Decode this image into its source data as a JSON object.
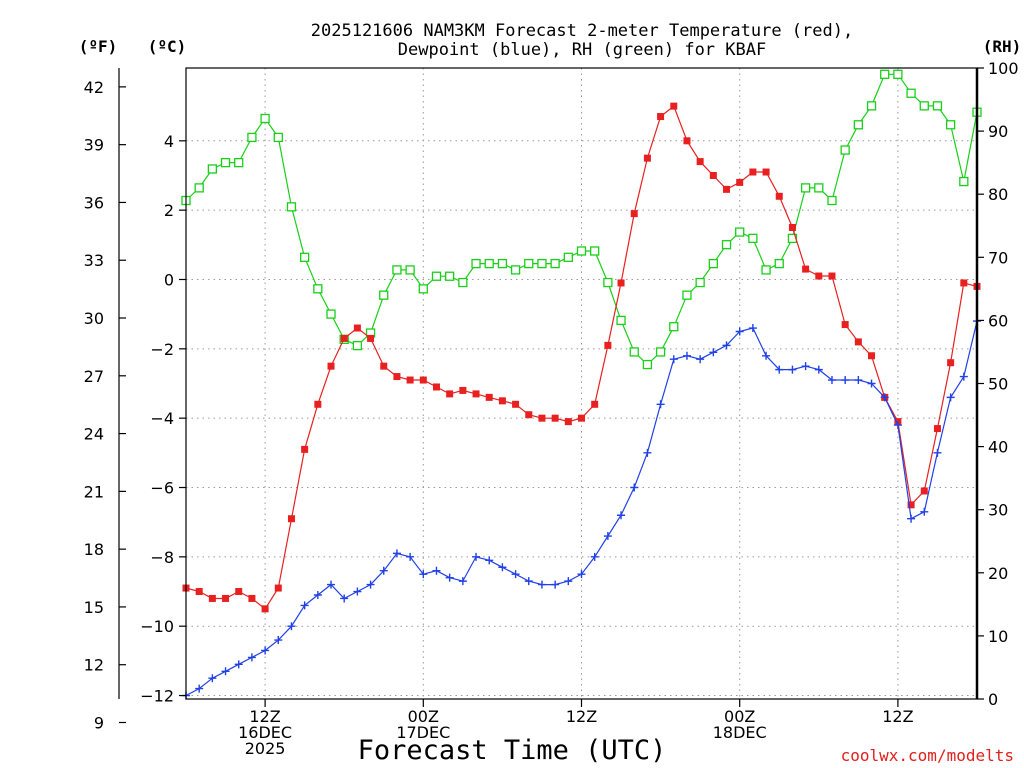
{
  "title": {
    "line1": "2025121606 NAM3KM Forecast 2-meter Temperature (red),",
    "line2": "Dewpoint (blue), RH (green) for KBAF"
  },
  "units": {
    "fahrenheit": "(ºF)",
    "celsius": "(ºC)",
    "rh": "(RH)"
  },
  "x_axis_label": "Forecast Time (UTC)",
  "credit": "coolwx.com/modelts",
  "chart_data": {
    "type": "line",
    "x_unit": "forecast hour",
    "x_range": [
      0,
      60
    ],
    "x_ticks": [
      {
        "hour": 6,
        "lines": [
          "12Z",
          "16DEC",
          "2025"
        ]
      },
      {
        "hour": 18,
        "lines": [
          "00Z",
          "17DEC"
        ]
      },
      {
        "hour": 30,
        "lines": [
          "12Z"
        ]
      },
      {
        "hour": 42,
        "lines": [
          "00Z",
          "18DEC"
        ]
      },
      {
        "hour": 54,
        "lines": [
          "12Z"
        ]
      }
    ],
    "left_axis_celsius": {
      "range": [
        -12.1,
        6.1
      ],
      "ticks": [
        "−12",
        "−10",
        "−8",
        "−6",
        "−4",
        "−2",
        "0",
        "2",
        "4"
      ],
      "tick_values": [
        -12,
        -10,
        -8,
        -6,
        -4,
        -2,
        0,
        2,
        4
      ]
    },
    "left_axis_fahrenheit": {
      "ticks": [
        "9",
        "12",
        "15",
        "18",
        "21",
        "24",
        "27",
        "30",
        "33",
        "36",
        "39",
        "42"
      ],
      "tick_values": [
        9,
        12,
        15,
        18,
        21,
        24,
        27,
        30,
        33,
        36,
        39,
        42
      ]
    },
    "right_axis_rh": {
      "range": [
        0,
        100
      ],
      "ticks": [
        "0",
        "10",
        "20",
        "30",
        "40",
        "50",
        "60",
        "70",
        "80",
        "90",
        "100"
      ],
      "tick_values": [
        0,
        10,
        20,
        30,
        40,
        50,
        60,
        70,
        80,
        90,
        100
      ]
    },
    "series": [
      {
        "name": "2-meter Temperature",
        "unit": "°C",
        "axis": "left",
        "color": "#e82020",
        "marker": "filled-square",
        "values": [
          -8.9,
          -9.0,
          -9.2,
          -9.2,
          -9.0,
          -9.2,
          -9.5,
          -8.9,
          -6.9,
          -4.9,
          -3.6,
          -2.5,
          -1.7,
          -1.4,
          -1.7,
          -2.5,
          -2.8,
          -2.9,
          -2.9,
          -3.1,
          -3.3,
          -3.2,
          -3.3,
          -3.4,
          -3.5,
          -3.6,
          -3.9,
          -4.0,
          -4.0,
          -4.1,
          -4.0,
          -3.6,
          -1.9,
          -0.1,
          1.9,
          3.5,
          4.7,
          5.0,
          4.0,
          3.4,
          3.0,
          2.6,
          2.8,
          3.1,
          3.1,
          2.4,
          1.5,
          0.3,
          0.1,
          0.1,
          -1.3,
          -1.8,
          -2.2,
          -3.4,
          -4.1,
          -6.5,
          -6.1,
          -4.3,
          -2.4,
          -0.1,
          -0.2
        ]
      },
      {
        "name": "Dewpoint",
        "unit": "°C",
        "axis": "left",
        "color": "#2040e8",
        "marker": "plus",
        "values": [
          -12.0,
          -11.8,
          -11.5,
          -11.3,
          -11.1,
          -10.9,
          -10.7,
          -10.4,
          -10.0,
          -9.4,
          -9.1,
          -8.8,
          -9.2,
          -9.0,
          -8.8,
          -8.4,
          -7.9,
          -8.0,
          -8.5,
          -8.4,
          -8.6,
          -8.7,
          -8.0,
          -8.1,
          -8.3,
          -8.5,
          -8.7,
          -8.8,
          -8.8,
          -8.7,
          -8.5,
          -8.0,
          -7.4,
          -6.8,
          -6.0,
          -5.0,
          -3.6,
          -2.3,
          -2.2,
          -2.3,
          -2.1,
          -1.9,
          -1.5,
          -1.4,
          -2.2,
          -2.6,
          -2.6,
          -2.5,
          -2.6,
          -2.9,
          -2.9,
          -2.9,
          -3.0,
          -3.4,
          -4.2,
          -6.9,
          -6.7,
          -5.0,
          -3.4,
          -2.8,
          -1.2
        ]
      },
      {
        "name": "RH",
        "unit": "%",
        "axis": "right",
        "color": "#18d018",
        "marker": "open-square",
        "values": [
          79,
          81,
          84,
          85,
          85,
          89,
          92,
          89,
          78,
          70,
          65,
          61,
          57,
          56,
          58,
          64,
          68,
          68,
          65,
          67,
          67,
          66,
          69,
          69,
          69,
          68,
          69,
          69,
          69,
          70,
          71,
          71,
          66,
          60,
          55,
          53,
          55,
          59,
          64,
          66,
          69,
          72,
          74,
          73,
          68,
          69,
          73,
          81,
          81,
          79,
          87,
          91,
          94,
          99,
          99,
          96,
          94,
          94,
          91,
          82,
          93
        ]
      }
    ]
  }
}
